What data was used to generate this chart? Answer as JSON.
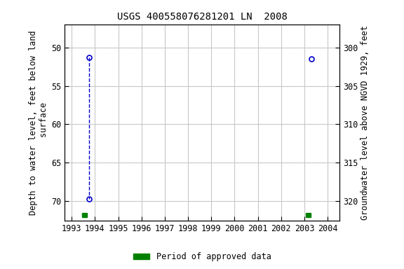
{
  "title": "USGS 400558076281201 LN  2008",
  "ylabel_left": "Depth to water level, feet below land\n surface",
  "ylabel_right": "Groundwater level above NGVD 1929, feet",
  "xlim": [
    1992.7,
    2004.5
  ],
  "ylim_left": [
    47.0,
    72.5
  ],
  "ylim_right": [
    297.0,
    322.5
  ],
  "xticks": [
    1993,
    1994,
    1995,
    1996,
    1997,
    1998,
    1999,
    2000,
    2001,
    2002,
    2003,
    2004
  ],
  "yticks_left": [
    50,
    55,
    60,
    65,
    70
  ],
  "yticks_right": [
    300,
    305,
    310,
    315,
    320
  ],
  "data_x": [
    1993.75,
    1993.75
  ],
  "data_y": [
    51.3,
    69.7
  ],
  "data_x2": [
    2003.3
  ],
  "data_y2": [
    51.5
  ],
  "approved_bar1_x": 1993.45,
  "approved_bar2_x": 2003.05,
  "approved_bar_y": 71.5,
  "approved_bar_width": 0.22,
  "approved_bar_height": 0.55,
  "point_color": "#0000cc",
  "line_color": "#0000cc",
  "approved_color": "#008000",
  "bg_color": "#ffffff",
  "grid_color": "#c8c8c8",
  "title_fontsize": 10,
  "axis_fontsize": 8.5,
  "tick_fontsize": 8.5
}
